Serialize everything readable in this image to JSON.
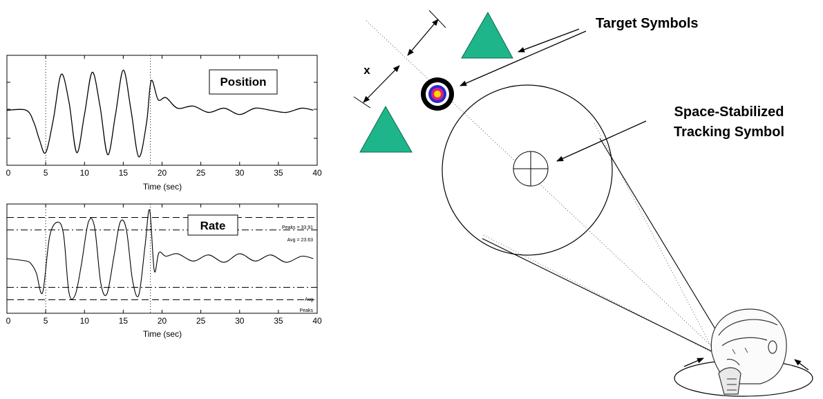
{
  "position_chart": {
    "label": "Position",
    "xlabel": "Time (sec)",
    "x_ticks": [
      "0",
      "5",
      "10",
      "15",
      "20",
      "25",
      "30",
      "35",
      "40"
    ]
  },
  "rate_chart": {
    "label": "Rate",
    "xlabel": "Time (sec)",
    "x_ticks": [
      "0",
      "5",
      "10",
      "15",
      "20",
      "25",
      "30",
      "35",
      "40"
    ],
    "annotations": {
      "peaks_top": "Peaks = 33.91",
      "avg_top": "Avg = 23.63",
      "avg_bottom": "Avg",
      "peaks_bottom": "Peaks"
    }
  },
  "chart_data": [
    {
      "type": "line",
      "title": "Position",
      "xlabel": "Time (sec)",
      "ylabel": "",
      "xlim": [
        0,
        40
      ],
      "ylim": [
        -1.3,
        1.3
      ],
      "x": [
        0,
        2.5,
        3.5,
        4.2,
        5,
        6,
        7,
        8,
        9,
        10,
        11,
        12,
        13,
        14,
        15,
        16,
        17,
        18,
        18.6,
        19.5,
        20.5,
        22,
        24,
        26,
        28,
        30,
        32,
        34,
        36,
        38,
        39.5
      ],
      "series": [
        {
          "values": [
            0,
            0,
            -0.3,
            -0.7,
            -1.0,
            -0.2,
            0.85,
            0.2,
            -1.0,
            -0.1,
            0.9,
            0.1,
            -1.05,
            -0.1,
            0.95,
            0.0,
            -1.1,
            -0.3,
            0.7,
            0.25,
            0.3,
            0.05,
            0.1,
            -0.05,
            0.05,
            -0.1,
            0.05,
            0.0,
            -0.05,
            0.05,
            0.0
          ]
        }
      ],
      "vertical_markers_x": [
        5,
        18.5
      ]
    },
    {
      "type": "line",
      "title": "Rate",
      "xlabel": "Time (sec)",
      "ylabel": "",
      "xlim": [
        0,
        40
      ],
      "ylim": [
        -45,
        45
      ],
      "x": [
        0,
        2.5,
        3.2,
        3.8,
        4.6,
        5.5,
        6.5,
        7.3,
        8.0,
        8.8,
        9.6,
        10.5,
        11.3,
        12.1,
        12.9,
        13.8,
        14.6,
        15.4,
        16.2,
        17.0,
        17.8,
        18.4,
        19.0,
        19.6,
        20.5,
        22,
        24,
        26,
        28,
        30,
        32,
        34,
        36,
        38,
        39.5
      ],
      "series": [
        {
          "values": [
            0,
            -2,
            -5,
            -12,
            -28,
            18,
            30,
            20,
            -28,
            -30,
            -5,
            30,
            26,
            -20,
            -29,
            2,
            30,
            24,
            -18,
            -30,
            10,
            40,
            -10,
            5,
            2,
            4,
            -2,
            3,
            -3,
            4,
            -2,
            3,
            -3,
            2,
            0
          ]
        }
      ],
      "reference_lines": [
        {
          "name": "Peaks",
          "y": 33.91,
          "style": "dashed"
        },
        {
          "name": "Avg",
          "y": 23.63,
          "style": "dash-dot"
        },
        {
          "name": "Avg",
          "y": -23.63,
          "style": "dash-dot"
        },
        {
          "name": "Peaks",
          "y": -33.91,
          "style": "dashed"
        }
      ],
      "vertical_markers_x": [
        5,
        18.5
      ]
    }
  ],
  "diagram": {
    "x_label": "x",
    "target_symbols_label": "Target Symbols",
    "tracking_label_line1": "Space-Stabilized",
    "tracking_label_line2": "Tracking Symbol",
    "target_color": "#1fb58a",
    "bullseye_colors": [
      "#000000",
      "#2a2ad0",
      "#e0207a",
      "#ffd600"
    ]
  }
}
